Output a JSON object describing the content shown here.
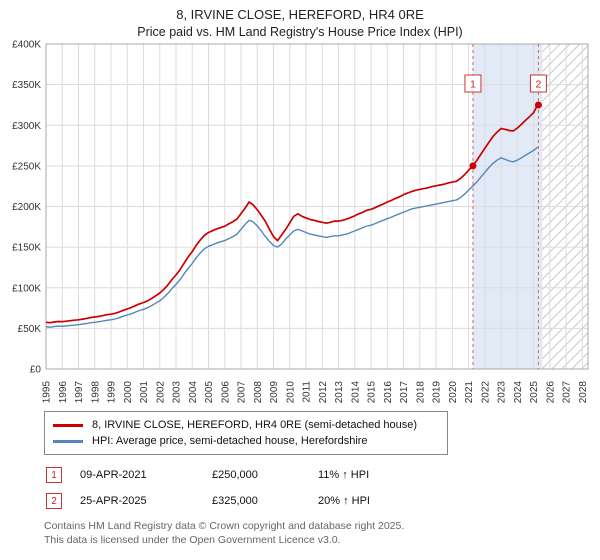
{
  "title": "8, IRVINE CLOSE, HEREFORD, HR4 0RE",
  "subtitle": "Price paid vs. HM Land Registry's House Price Index (HPI)",
  "chart_data": {
    "type": "line",
    "title": "8, IRVINE CLOSE, HEREFORD, HR4 0RE — Price paid vs. HM Land Registry's House Price Index (HPI)",
    "x_unit": "year",
    "y_unit": "GBP thousands",
    "x_start": 1995,
    "x_step": 0.25,
    "x_axis": {
      "min": 1995,
      "max": 2028.35,
      "tick_years": [
        1995,
        1996,
        1997,
        1998,
        1999,
        2000,
        2001,
        2002,
        2003,
        2004,
        2005,
        2006,
        2007,
        2008,
        2009,
        2010,
        2011,
        2012,
        2013,
        2014,
        2015,
        2016,
        2017,
        2018,
        2019,
        2020,
        2021,
        2022,
        2023,
        2024,
        2025,
        2026,
        2027,
        2028
      ]
    },
    "y_axis": {
      "max_k": 400,
      "ticks": [
        {
          "v": 0,
          "label": "£0"
        },
        {
          "v": 50,
          "label": "£50K"
        },
        {
          "v": 100,
          "label": "£100K"
        },
        {
          "v": 150,
          "label": "£150K"
        },
        {
          "v": 200,
          "label": "£200K"
        },
        {
          "v": 250,
          "label": "£250K"
        },
        {
          "v": 300,
          "label": "£300K"
        },
        {
          "v": 350,
          "label": "£350K"
        },
        {
          "v": 400,
          "label": "£400K"
        }
      ]
    },
    "grid_color": "#dcdcdc",
    "spine_color": "#a9a9a9",
    "series": [
      {
        "name": "8, IRVINE CLOSE, HEREFORD, HR4 0RE (semi-detached house)",
        "color": "#cc0000",
        "values_k": [
          57.5,
          57,
          57.8,
          58.5,
          58.2,
          58.8,
          59.5,
          60.1,
          60.6,
          61.4,
          62.3,
          63.4,
          64,
          64.8,
          65.7,
          66.8,
          67.4,
          68.5,
          70.1,
          72.3,
          74,
          75.7,
          77.9,
          80.1,
          81.8,
          84,
          86.8,
          90.1,
          93.5,
          98,
          103.5,
          110.2,
          115.8,
          122.4,
          130.2,
          138,
          144.6,
          152.4,
          159,
          164.6,
          168,
          170.2,
          172.4,
          174,
          175.8,
          178.6,
          181.3,
          184.6,
          191.3,
          198,
          205.5,
          202,
          196,
          189,
          181.5,
          172,
          163,
          158,
          165,
          172,
          180,
          188,
          191,
          188,
          186,
          184,
          183,
          181.5,
          180.5,
          179.5,
          180.5,
          182,
          182,
          183,
          184.5,
          186.5,
          188.5,
          191,
          193,
          195.5,
          196.5,
          198.5,
          201,
          203,
          205.5,
          207.5,
          210,
          212,
          214.5,
          216.5,
          218.5,
          220,
          221,
          222,
          223,
          224.5,
          225.5,
          226.5,
          227.5,
          229,
          230,
          231,
          234.5,
          239,
          244.5,
          250,
          256.5,
          264,
          271.5,
          279,
          286,
          291.5,
          296,
          295,
          293.5,
          293,
          296.5,
          301,
          306,
          310.5,
          315.5,
          325
        ]
      },
      {
        "name": "HPI: Average price, semi-detached house, Herefordshire",
        "color": "#5585bb",
        "values_k": [
          52,
          51.5,
          52.2,
          52.8,
          52.5,
          53,
          53.6,
          54,
          54.5,
          55.2,
          56,
          57,
          57.5,
          58.2,
          59,
          60,
          60.5,
          61.5,
          63,
          65,
          66.5,
          68,
          70,
          72,
          73.5,
          75.5,
          78,
          81,
          84,
          88,
          93,
          99,
          104,
          110,
          117,
          124,
          130,
          137,
          143,
          148,
          151,
          153,
          155,
          156.5,
          158,
          160.5,
          163,
          166,
          172,
          178,
          183,
          181,
          176,
          170,
          163,
          157,
          152,
          150,
          154,
          160,
          165,
          170,
          172,
          170,
          168,
          166,
          165,
          164,
          163,
          162,
          163,
          164,
          164,
          165,
          166,
          168,
          170,
          172,
          174,
          176,
          177,
          179,
          181,
          183,
          185,
          187,
          189,
          191,
          193,
          195,
          197,
          198,
          199,
          200,
          201,
          202,
          203,
          204,
          205,
          206,
          207,
          208,
          211,
          215,
          220,
          225,
          230,
          236,
          242,
          248,
          253,
          257,
          260,
          258,
          256,
          255,
          257,
          260,
          263,
          266,
          269,
          273
        ]
      }
    ],
    "sales": [
      {
        "n": "1",
        "x": 2021.27,
        "y_k": 250,
        "date": "09-APR-2021",
        "price": "£250,000",
        "hpi": "11% ↑ HPI"
      },
      {
        "n": "2",
        "x": 2025.3,
        "y_k": 325,
        "date": "25-APR-2025",
        "price": "£325,000",
        "hpi": "20% ↑ HPI"
      }
    ],
    "sale_line_color": "#e06060",
    "shade": {
      "from": 2021.27,
      "to": 2025.55,
      "color": "#e2eaf8"
    },
    "hatch": {
      "from": 2025.55,
      "to": 2028.35,
      "color": "#c9c9c9"
    },
    "legend_position": "bottom"
  },
  "footer": [
    "Contains HM Land Registry data © Crown copyright and database right 2025.",
    "This data is licensed under the Open Government Licence v3.0."
  ]
}
